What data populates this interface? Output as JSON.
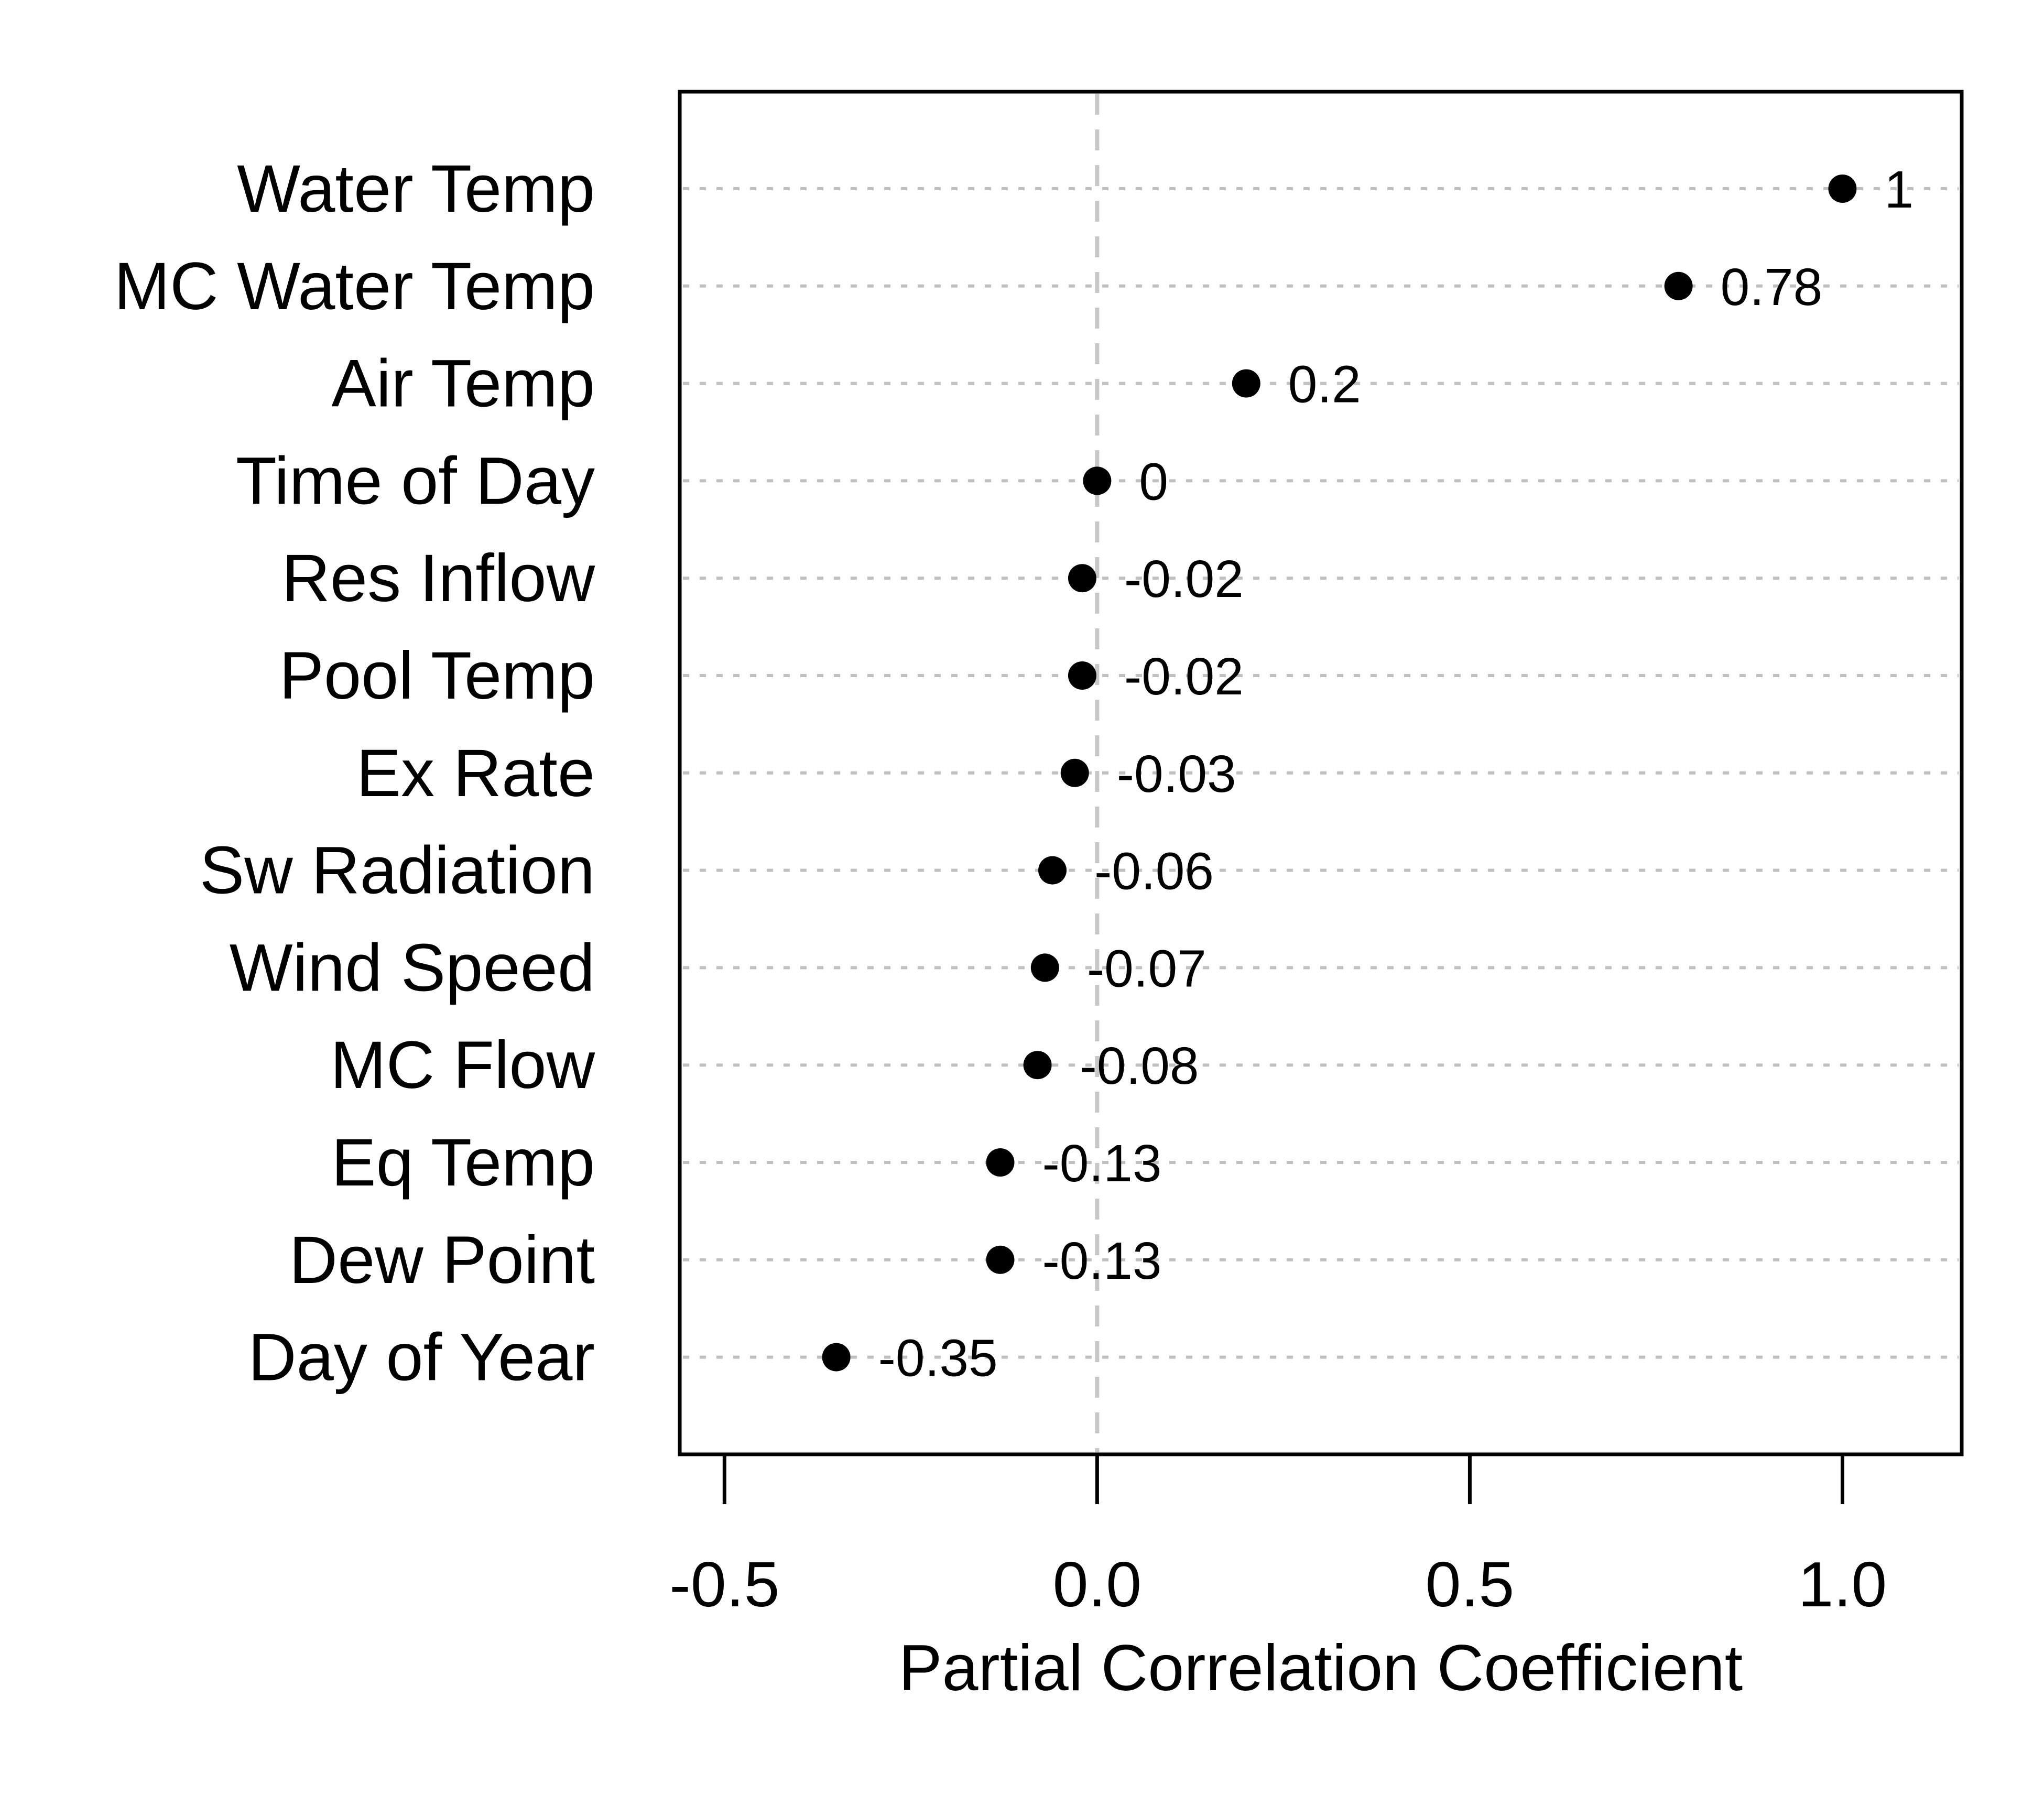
{
  "chart_data": {
    "type": "scatter",
    "style": "dot-plot",
    "categories": [
      "Water Temp",
      "MC Water Temp",
      "Air Temp",
      "Time of Day",
      "Res Inflow",
      "Pool Temp",
      "Ex Rate",
      "Sw Radiation",
      "Wind Speed",
      "MC Flow",
      "Eq Temp",
      "Dew Point",
      "Day of Year"
    ],
    "values": [
      1.0,
      0.78,
      0.2,
      0.0,
      -0.02,
      -0.02,
      -0.03,
      -0.06,
      -0.07,
      -0.08,
      -0.13,
      -0.13,
      -0.35
    ],
    "value_labels": [
      "1",
      "0.78",
      "0.2",
      "0",
      "-0.02",
      "-0.02",
      "-0.03",
      "-0.06",
      "-0.07",
      "-0.08",
      "-0.13",
      "-0.13",
      "-0.35"
    ],
    "title": "",
    "xlabel": "Partial Correlation Coefficient",
    "ylabel": "",
    "xlim": [
      -0.56,
      1.16
    ],
    "xticks": [
      -0.5,
      0.0,
      0.5,
      1.0
    ],
    "xtick_labels": [
      "-0.5",
      "0.0",
      "0.5",
      "1.0"
    ],
    "reference_line": 0.0,
    "gridlines": "horizontal-dashed",
    "legend": "none",
    "colors": {
      "points": "#000000",
      "gridlines": "#c0c0c0",
      "reference_line": "#c8c8c8",
      "frame": "#000000"
    }
  }
}
